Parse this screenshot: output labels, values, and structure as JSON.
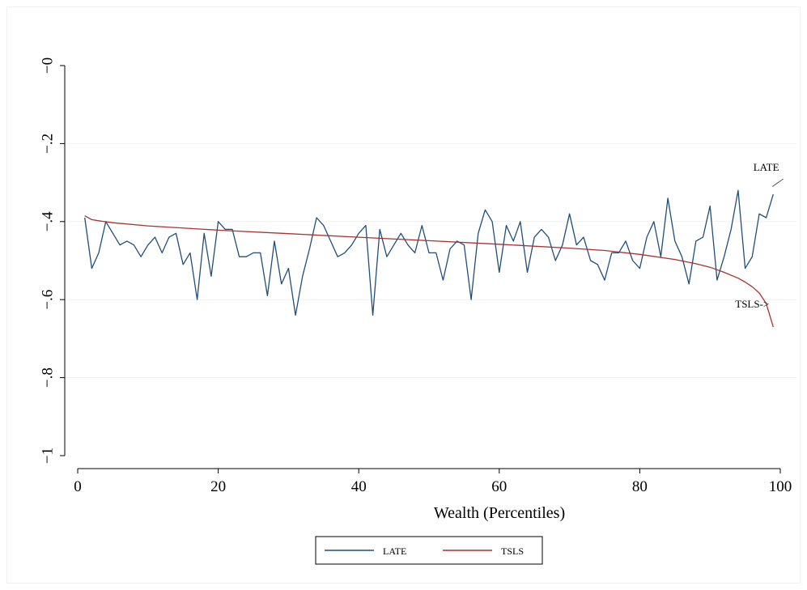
{
  "chart_data": {
    "type": "line",
    "title": "",
    "xlabel": "Wealth (Percentiles)",
    "ylabel": "",
    "xlim": [
      0,
      100
    ],
    "ylim": [
      -1,
      0
    ],
    "x_ticks": [
      0,
      20,
      40,
      60,
      80,
      100
    ],
    "x_tick_labels": [
      "0",
      "20",
      "40",
      "60",
      "80",
      "100"
    ],
    "y_ticks": [
      0,
      -0.2,
      -0.4,
      -0.6,
      -0.8,
      -1
    ],
    "y_tick_labels": [
      "−0",
      "−.2",
      "−.4",
      "−.6",
      "−.8",
      "−1"
    ],
    "grid": "horizontal",
    "legend_position": "bottom",
    "colors": {
      "LATE": "#1f4e79",
      "TSLS": "#a83232",
      "grid": "#eef3f6"
    },
    "series": [
      {
        "name": "LATE",
        "x": [
          1,
          2,
          3,
          4,
          5,
          6,
          7,
          8,
          9,
          10,
          11,
          12,
          13,
          14,
          15,
          16,
          17,
          18,
          19,
          20,
          21,
          22,
          23,
          24,
          25,
          26,
          27,
          28,
          29,
          30,
          31,
          32,
          33,
          34,
          35,
          36,
          37,
          38,
          39,
          40,
          41,
          42,
          43,
          44,
          45,
          46,
          47,
          48,
          49,
          50,
          51,
          52,
          53,
          54,
          55,
          56,
          57,
          58,
          59,
          60,
          61,
          62,
          63,
          64,
          65,
          66,
          67,
          68,
          69,
          70,
          71,
          72,
          73,
          74,
          75,
          76,
          77,
          78,
          79,
          80,
          81,
          82,
          83,
          84,
          85,
          86,
          87,
          88,
          89,
          90,
          91,
          92,
          93,
          94,
          95,
          96,
          97,
          98,
          99
        ],
        "y": [
          -0.39,
          -0.52,
          -0.48,
          -0.4,
          -0.43,
          -0.46,
          -0.45,
          -0.46,
          -0.49,
          -0.46,
          -0.44,
          -0.48,
          -0.44,
          -0.43,
          -0.51,
          -0.48,
          -0.6,
          -0.43,
          -0.54,
          -0.4,
          -0.42,
          -0.42,
          -0.49,
          -0.49,
          -0.48,
          -0.48,
          -0.59,
          -0.45,
          -0.56,
          -0.52,
          -0.64,
          -0.54,
          -0.47,
          -0.39,
          -0.41,
          -0.45,
          -0.49,
          -0.48,
          -0.46,
          -0.43,
          -0.41,
          -0.64,
          -0.42,
          -0.49,
          -0.46,
          -0.43,
          -0.46,
          -0.48,
          -0.41,
          -0.48,
          -0.48,
          -0.55,
          -0.47,
          -0.45,
          -0.46,
          -0.6,
          -0.43,
          -0.37,
          -0.4,
          -0.53,
          -0.41,
          -0.45,
          -0.4,
          -0.53,
          -0.44,
          -0.42,
          -0.44,
          -0.5,
          -0.46,
          -0.38,
          -0.46,
          -0.44,
          -0.5,
          -0.51,
          -0.55,
          -0.48,
          -0.48,
          -0.45,
          -0.5,
          -0.52,
          -0.44,
          -0.4,
          -0.49,
          -0.34,
          -0.45,
          -0.49,
          -0.56,
          -0.45,
          -0.44,
          -0.36,
          -0.55,
          -0.49,
          -0.42,
          -0.32,
          -0.52,
          -0.49,
          -0.38,
          -0.39,
          -0.33
        ]
      },
      {
        "name": "TSLS",
        "x": [
          1,
          2,
          3,
          5,
          10,
          20,
          30,
          40,
          50,
          60,
          70,
          75,
          80,
          85,
          88,
          90,
          92,
          94,
          95,
          96,
          97,
          98,
          99
        ],
        "y": [
          -0.385,
          -0.395,
          -0.398,
          -0.403,
          -0.411,
          -0.422,
          -0.431,
          -0.44,
          -0.449,
          -0.458,
          -0.468,
          -0.474,
          -0.484,
          -0.497,
          -0.508,
          -0.517,
          -0.53,
          -0.545,
          -0.555,
          -0.567,
          -0.583,
          -0.61,
          -0.67
        ]
      }
    ],
    "annotations": [
      {
        "text": "LATE",
        "x": 98,
        "y": -0.27,
        "points_to": [
          99,
          -0.31
        ]
      },
      {
        "text": "TSLS->",
        "x": 96,
        "y": -0.62
      }
    ]
  }
}
